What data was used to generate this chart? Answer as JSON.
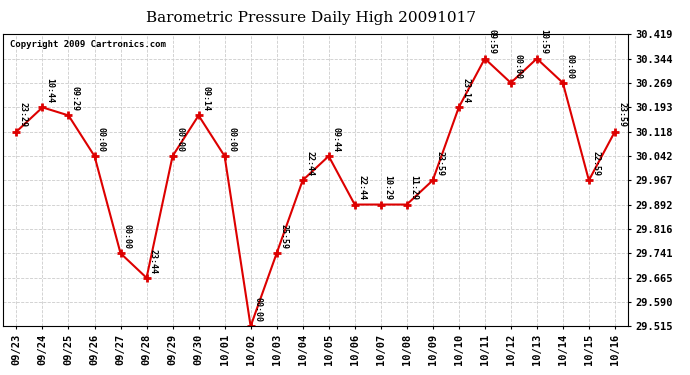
{
  "title": "Barometric Pressure Daily High 20091017",
  "copyright": "Copyright 2009 Cartronics.com",
  "x_labels": [
    "09/23",
    "09/24",
    "09/25",
    "09/26",
    "09/27",
    "09/28",
    "09/29",
    "09/30",
    "10/01",
    "10/02",
    "10/03",
    "10/04",
    "10/05",
    "10/06",
    "10/07",
    "10/08",
    "10/09",
    "10/10",
    "10/11",
    "10/12",
    "10/13",
    "10/14",
    "10/15",
    "10/16"
  ],
  "y_values": [
    30.118,
    30.193,
    30.168,
    30.042,
    29.741,
    29.665,
    30.042,
    30.168,
    30.042,
    29.515,
    29.741,
    29.967,
    30.042,
    29.892,
    29.892,
    29.892,
    29.967,
    30.193,
    30.344,
    30.269,
    30.344,
    30.269,
    29.967,
    30.118
  ],
  "time_labels": [
    "23:29",
    "10:44",
    "09:29",
    "00:00",
    "00:00",
    "23:44",
    "00:00",
    "09:14",
    "00:00",
    "00:00",
    "25:59",
    "22:44",
    "09:44",
    "22:44",
    "10:29",
    "11:29",
    "23:59",
    "23:14",
    "09:59",
    "00:00",
    "10:59",
    "00:00",
    "22:59",
    "23:59"
  ],
  "ylim_min": 29.515,
  "ylim_max": 30.419,
  "yticks": [
    29.515,
    29.59,
    29.665,
    29.741,
    29.816,
    29.892,
    29.967,
    30.042,
    30.118,
    30.193,
    30.269,
    30.344,
    30.419
  ],
  "line_color": "#dd0000",
  "bg_color": "#ffffff",
  "grid_color": "#cccccc",
  "title_fontsize": 11,
  "copyright_fontsize": 6.5,
  "tick_fontsize": 7.5,
  "annotation_fontsize": 6.0
}
